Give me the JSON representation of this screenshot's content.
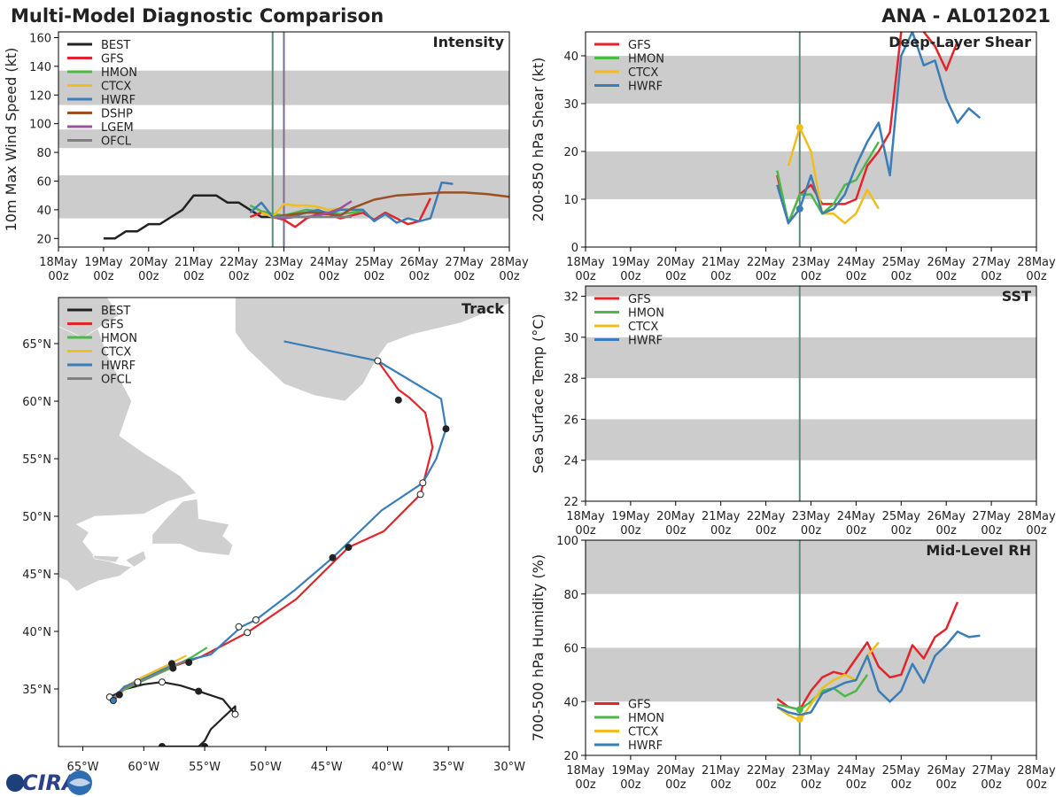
{
  "header": {
    "left": "Multi-Model Diagnostic Comparison",
    "right": "ANA - AL012021"
  },
  "colors": {
    "BEST": "#222222",
    "GFS": "#e3252b",
    "HMON": "#4db848",
    "CTCX": "#f0be1a",
    "HWRF": "#3a7db8",
    "DSHP": "#9b4f23",
    "LGEM": "#9b51a3",
    "OFCL": "#808080",
    "band": "#cccccc",
    "land": "#cfcfcf",
    "vline1": "#5a8f7a",
    "vline2": "#7a6f8a"
  },
  "time_ticks": [
    {
      "day": "18May",
      "hour": "00z"
    },
    {
      "day": "19May",
      "hour": "00z"
    },
    {
      "day": "20May",
      "hour": "00z"
    },
    {
      "day": "21May",
      "hour": "00z"
    },
    {
      "day": "22May",
      "hour": "00z"
    },
    {
      "day": "23May",
      "hour": "00z"
    },
    {
      "day": "24May",
      "hour": "00z"
    },
    {
      "day": "25May",
      "hour": "00z"
    },
    {
      "day": "26May",
      "hour": "00z"
    },
    {
      "day": "27May",
      "hour": "00z"
    },
    {
      "day": "28May",
      "hour": "00z"
    }
  ],
  "logo": {
    "text": "CIRA"
  },
  "chart_data": [
    {
      "id": "intensity",
      "type": "line",
      "title": "Intensity",
      "ylabel": "10m Max Wind Speed (kt)",
      "xlim": [
        0,
        10
      ],
      "ylim": [
        14,
        164
      ],
      "yticks": [
        20,
        40,
        60,
        80,
        100,
        120,
        140,
        160
      ],
      "bands": [
        [
          34,
          64
        ],
        [
          83,
          96
        ],
        [
          113,
          137
        ]
      ],
      "vlines": [
        {
          "x": 4.75,
          "color": "vline1"
        },
        {
          "x": 5.0,
          "color": "vline2"
        }
      ],
      "legend": [
        "BEST",
        "GFS",
        "HMON",
        "CTCX",
        "HWRF",
        "DSHP",
        "LGEM",
        "OFCL"
      ],
      "series": [
        {
          "name": "BEST",
          "x": [
            1.0,
            1.25,
            1.5,
            1.75,
            2.0,
            2.25,
            2.5,
            2.75,
            3.0,
            3.25,
            3.5,
            3.75,
            4.0,
            4.25,
            4.5,
            4.75
          ],
          "y": [
            20,
            20,
            25,
            25,
            30,
            30,
            35,
            40,
            50,
            50,
            50,
            45,
            45,
            40,
            35,
            35
          ]
        },
        {
          "name": "GFS",
          "x": [
            4.25,
            4.5,
            4.75,
            5.0,
            5.25,
            5.5,
            5.75,
            6.0,
            6.25,
            6.5,
            6.75,
            7.0,
            7.25,
            7.5,
            7.75,
            8.0,
            8.25
          ],
          "y": [
            35,
            38,
            35,
            33,
            28,
            34,
            37,
            37,
            34,
            36,
            38,
            33,
            38,
            34,
            30,
            32,
            48
          ]
        },
        {
          "name": "HMON",
          "x": [
            4.25,
            4.5,
            4.75,
            5.0,
            5.25,
            5.5,
            5.75,
            6.0,
            6.25,
            6.5,
            6.75
          ],
          "y": [
            43,
            39,
            37,
            36,
            38,
            40,
            39,
            38,
            37,
            38,
            39
          ]
        },
        {
          "name": "CTCX",
          "x": [
            4.5,
            4.75,
            5.0,
            5.25,
            5.5,
            5.75,
            6.0,
            6.25,
            6.5
          ],
          "y": [
            38,
            35,
            44,
            43,
            43,
            42,
            40,
            41,
            40
          ]
        },
        {
          "name": "HWRF",
          "x": [
            4.25,
            4.5,
            4.75,
            5.0,
            5.25,
            5.5,
            5.75,
            6.0,
            6.25,
            6.5,
            6.75,
            7.0,
            7.25,
            7.5,
            7.75,
            8.0,
            8.25,
            8.5,
            8.75
          ],
          "y": [
            38,
            45,
            35,
            36,
            36,
            38,
            40,
            37,
            40,
            40,
            40,
            32,
            37,
            31,
            34,
            32,
            34,
            59,
            58
          ]
        },
        {
          "name": "DSHP",
          "x": [
            4.75,
            5.0,
            5.25,
            5.5,
            5.75,
            6.0,
            6.25,
            6.5,
            7.0,
            7.5,
            8.0,
            8.5,
            9.0,
            9.5,
            10.0
          ],
          "y": [
            35,
            36,
            37,
            38,
            38,
            37,
            36,
            41,
            47,
            50,
            51,
            52,
            52,
            51,
            49
          ]
        },
        {
          "name": "LGEM",
          "x": [
            4.75,
            5.0,
            5.25,
            5.5,
            5.75,
            6.0,
            6.25,
            6.5
          ],
          "y": [
            35,
            34,
            35,
            35,
            36,
            38,
            41,
            46
          ]
        },
        {
          "name": "OFCL",
          "x": [
            4.75,
            5.0,
            5.5,
            6.0,
            6.5
          ],
          "y": [
            35,
            35,
            35,
            35,
            35
          ]
        }
      ]
    },
    {
      "id": "shear",
      "type": "line",
      "title": "Deep-Layer Shear",
      "ylabel": "200-850 hPa Shear (kt)",
      "xlim": [
        0,
        10
      ],
      "ylim": [
        0,
        45
      ],
      "yticks": [
        0,
        10,
        20,
        30,
        40
      ],
      "bands": [
        [
          10,
          20
        ],
        [
          30,
          40
        ]
      ],
      "vlines": [
        {
          "x": 4.75,
          "color": "vline1"
        }
      ],
      "legend": [
        "GFS",
        "HMON",
        "CTCX",
        "HWRF"
      ],
      "series": [
        {
          "name": "GFS",
          "x": [
            4.25,
            4.5,
            4.75,
            5.0,
            5.25,
            5.5,
            5.75,
            6.0,
            6.25,
            6.5,
            6.75,
            7.0,
            7.25,
            7.5,
            7.75,
            8.0,
            8.25
          ],
          "y": [
            15,
            5,
            11,
            13,
            9,
            9,
            9,
            10,
            17,
            20,
            24,
            45,
            48,
            45,
            42,
            37,
            43
          ]
        },
        {
          "name": "HMON",
          "x": [
            4.25,
            4.5,
            4.75,
            5.0,
            5.25,
            5.5,
            5.75,
            6.0,
            6.25,
            6.5
          ],
          "y": [
            16,
            5,
            11,
            11,
            7,
            9,
            13,
            14,
            18,
            22
          ]
        },
        {
          "name": "CTCX",
          "x": [
            4.5,
            4.75,
            5.0,
            5.25,
            5.5,
            5.75,
            6.0,
            6.25,
            6.5
          ],
          "y": [
            17,
            25,
            20,
            7,
            7,
            5,
            7,
            12,
            8
          ]
        },
        {
          "name": "HWRF",
          "x": [
            4.25,
            4.5,
            4.75,
            5.0,
            5.25,
            5.5,
            5.75,
            6.0,
            6.25,
            6.5,
            6.75,
            7.0,
            7.25,
            7.5,
            7.75,
            8.0,
            8.25,
            8.5,
            8.75
          ],
          "y": [
            13,
            5,
            8,
            15,
            7,
            8,
            11,
            17,
            22,
            26,
            15,
            40,
            45,
            38,
            39,
            31,
            26,
            29,
            27
          ]
        }
      ],
      "markers": [
        {
          "name": "CTCX",
          "x": 4.75,
          "y": 25
        },
        {
          "name": "HWRF",
          "x": 4.75,
          "y": 8
        }
      ]
    },
    {
      "id": "sst",
      "type": "line",
      "title": "SST",
      "ylabel": "Sea Surface Temp (°C)",
      "xlim": [
        0,
        10
      ],
      "ylim": [
        22,
        32.5
      ],
      "yticks": [
        22,
        24,
        26,
        28,
        30,
        32
      ],
      "bands": [
        [
          24,
          26
        ],
        [
          28,
          30
        ],
        [
          32,
          32.5
        ]
      ],
      "vlines": [
        {
          "x": 4.75,
          "color": "vline1"
        }
      ],
      "legend": [
        "GFS",
        "HMON",
        "CTCX",
        "HWRF"
      ],
      "series": []
    },
    {
      "id": "rh",
      "type": "line",
      "title": "Mid-Level RH",
      "ylabel": "700-500 hPa Humidity (%)",
      "xlim": [
        0,
        10
      ],
      "ylim": [
        20,
        100
      ],
      "yticks": [
        20,
        40,
        60,
        80,
        100
      ],
      "bands": [
        [
          40,
          60
        ],
        [
          80,
          100
        ]
      ],
      "vlines": [
        {
          "x": 4.75,
          "color": "vline1"
        }
      ],
      "legend": [
        "GFS",
        "HMON",
        "CTCX",
        "HWRF"
      ],
      "legend_pos": "bottom-left",
      "series": [
        {
          "name": "GFS",
          "x": [
            4.25,
            4.5,
            4.75,
            5.0,
            5.25,
            5.5,
            5.75,
            6.0,
            6.25,
            6.5,
            6.75,
            7.0,
            7.25,
            7.5,
            7.75,
            8.0,
            8.25
          ],
          "y": [
            41,
            38,
            37,
            44,
            49,
            51,
            50,
            56,
            62,
            53,
            49,
            50,
            61,
            56,
            64,
            67,
            77
          ]
        },
        {
          "name": "HMON",
          "x": [
            4.25,
            4.5,
            4.75,
            5.0,
            5.25,
            5.5,
            5.75,
            6.0,
            6.25
          ],
          "y": [
            39,
            38,
            37,
            40,
            44,
            45,
            42,
            44,
            50
          ]
        },
        {
          "name": "CTCX",
          "x": [
            4.25,
            4.5,
            4.75,
            5.0,
            5.25,
            5.5,
            5.75,
            6.0,
            6.25,
            6.5
          ],
          "y": [
            38,
            35,
            33,
            39,
            45,
            48,
            50,
            48,
            57,
            62
          ]
        },
        {
          "name": "HWRF",
          "x": [
            4.25,
            4.5,
            4.75,
            5.0,
            5.25,
            5.5,
            5.75,
            6.0,
            6.25,
            6.5,
            6.75,
            7.0,
            7.25,
            7.5,
            7.75,
            8.0,
            8.25,
            8.5,
            8.75
          ],
          "y": [
            38,
            36,
            35,
            36,
            43,
            45,
            47,
            48,
            57,
            44,
            40,
            44,
            54,
            47,
            57,
            61,
            66,
            64,
            64.5
          ]
        }
      ],
      "markers": [
        {
          "name": "HMON",
          "x": 4.75,
          "y": 37
        },
        {
          "name": "CTCX",
          "x": 4.75,
          "y": 33.5
        }
      ]
    },
    {
      "id": "track",
      "type": "scatter",
      "title": "Track",
      "xlim": [
        -67,
        -30
      ],
      "ylim": [
        30,
        69
      ],
      "xticks": [
        -65,
        -60,
        -55,
        -50,
        -45,
        -40,
        -35,
        -30
      ],
      "xticklabels": [
        "65°W",
        "60°W",
        "55°W",
        "50°W",
        "45°W",
        "40°W",
        "35°W",
        "30°W"
      ],
      "yticks": [
        35,
        40,
        45,
        50,
        55,
        60,
        65
      ],
      "yticklabels": [
        "35°N",
        "40°N",
        "45°N",
        "50°N",
        "55°N",
        "60°N",
        "65°N"
      ],
      "legend": [
        "BEST",
        "GFS",
        "HMON",
        "CTCX",
        "HWRF",
        "OFCL"
      ],
      "series": [
        {
          "name": "BEST",
          "x": [
            -58.5,
            -57,
            -55.5,
            -55,
            -54.5,
            -53.5,
            -52.5,
            -52.5,
            -53.5,
            -55.5,
            -57,
            -58.5,
            -60,
            -61.5,
            -62.2,
            -62.8
          ],
          "y": [
            30,
            30,
            30,
            30.5,
            31.5,
            32.5,
            33.5,
            32.8,
            34.1,
            34.8,
            35.3,
            35.6,
            35.4,
            35,
            34.6,
            34.3
          ]
        },
        {
          "name": "GFS",
          "x": [
            -62.5,
            -62,
            -61.5,
            -60,
            -58,
            -55.3,
            -51.5,
            -47.5,
            -43.2,
            -40.3,
            -37.3,
            -36.3,
            -36.9,
            -38.2,
            -39.1,
            -40.8
          ],
          "y": [
            34,
            34.5,
            35.1,
            35.8,
            36.8,
            37.8,
            39.9,
            42.8,
            47.3,
            48.7,
            51.9,
            56,
            59,
            60.3,
            61,
            63.5
          ]
        },
        {
          "name": "HMON",
          "x": [
            -62.5,
            -61.5,
            -60.3,
            -58,
            -56,
            -54.8
          ],
          "y": [
            34.2,
            35,
            35.6,
            36.7,
            37.8,
            38.6
          ]
        },
        {
          "name": "CTCX",
          "x": [
            -62.3,
            -61.2,
            -60,
            -58.2,
            -56.5
          ],
          "y": [
            34.3,
            35.4,
            36.1,
            37,
            37.9
          ]
        },
        {
          "name": "HWRF",
          "x": [
            -62.5,
            -61.6,
            -60.4,
            -58,
            -56,
            -54.5,
            -52,
            -50.8,
            -47.6,
            -44.5,
            -40.5,
            -37.1,
            -36,
            -35.2,
            -35.6,
            -40.8,
            -48.5
          ],
          "y": [
            34.2,
            35.2,
            35.7,
            36.9,
            37.6,
            38,
            40.4,
            41,
            43.6,
            46.4,
            50.5,
            52.9,
            55,
            57.6,
            60.2,
            63.5,
            65.2
          ]
        },
        {
          "name": "OFCL",
          "x": [
            -62.5,
            -61.5,
            -60,
            -58,
            -56.5
          ],
          "y": [
            34.2,
            35.1,
            35.8,
            36.8,
            37.5
          ]
        }
      ],
      "points": [
        {
          "name": "BEST",
          "x": -52.5,
          "y": 32.8,
          "fill": "white"
        },
        {
          "name": "BEST",
          "x": -55.5,
          "y": 34.8,
          "fill": "solid"
        },
        {
          "name": "BEST",
          "x": -58.5,
          "y": 35.6,
          "fill": "white"
        },
        {
          "name": "BEST",
          "x": -60.5,
          "y": 35.5,
          "fill": "white"
        },
        {
          "name": "BEST",
          "x": -62.8,
          "y": 34.3,
          "fill": "white"
        },
        {
          "name": "BEST",
          "x": -62.0,
          "y": 34.5,
          "fill": "solid"
        },
        {
          "name": "BEST",
          "x": -58.5,
          "y": 30.0,
          "fill": "solid"
        },
        {
          "name": "BEST",
          "x": -55.0,
          "y": 30.0,
          "fill": "solid"
        },
        {
          "name": "GFS",
          "x": -56.3,
          "y": 37.3,
          "fill": "solid"
        },
        {
          "name": "GFS",
          "x": -51.5,
          "y": 39.9,
          "fill": "white"
        },
        {
          "name": "GFS",
          "x": -43.2,
          "y": 47.3,
          "fill": "solid"
        },
        {
          "name": "GFS",
          "x": -37.3,
          "y": 51.9,
          "fill": "white"
        },
        {
          "name": "GFS",
          "x": -39.1,
          "y": 60.1,
          "fill": "solid"
        },
        {
          "name": "GFS",
          "x": -40.8,
          "y": 63.5,
          "fill": "white"
        },
        {
          "name": "HWRF",
          "x": -57.7,
          "y": 37.2,
          "fill": "solid"
        },
        {
          "name": "HWRF",
          "x": -52.2,
          "y": 40.4,
          "fill": "white"
        },
        {
          "name": "HWRF",
          "x": -50.8,
          "y": 41.0,
          "fill": "white"
        },
        {
          "name": "HWRF",
          "x": -44.5,
          "y": 46.4,
          "fill": "solid"
        },
        {
          "name": "HWRF",
          "x": -37.1,
          "y": 52.9,
          "fill": "white"
        },
        {
          "name": "HWRF",
          "x": -35.2,
          "y": 57.6,
          "fill": "solid"
        },
        {
          "name": "HWRF",
          "x": -62.5,
          "y": 34.0,
          "fill": "blue"
        },
        {
          "name": "HMON",
          "x": -60.5,
          "y": 35.6,
          "fill": "white"
        },
        {
          "name": "HMON",
          "x": -57.6,
          "y": 36.8,
          "fill": "solid"
        }
      ]
    }
  ]
}
